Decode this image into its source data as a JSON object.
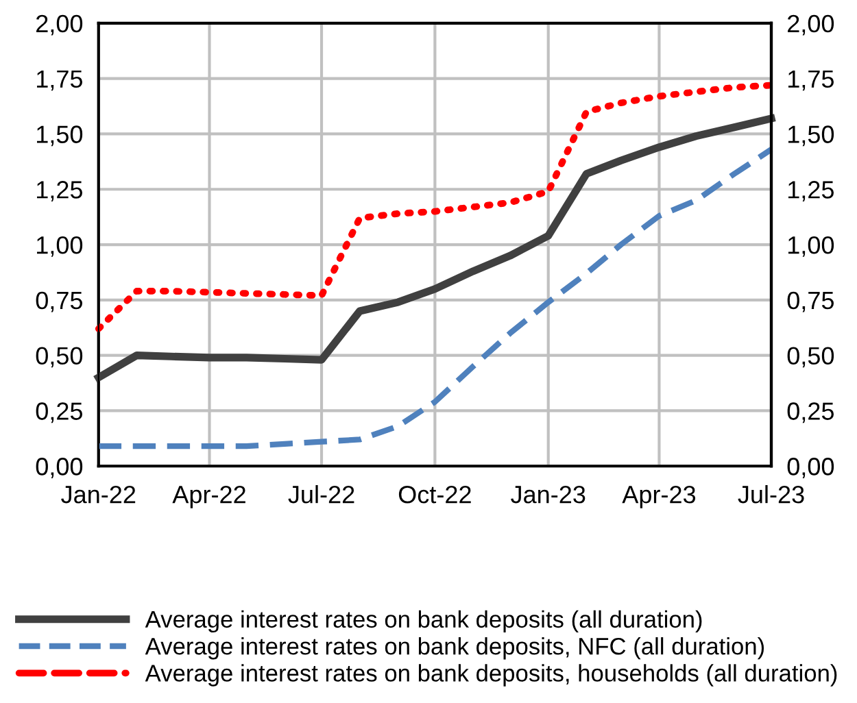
{
  "chart_data": {
    "type": "line",
    "x": [
      "2022-01",
      "2022-02",
      "2022-03",
      "2022-04",
      "2022-05",
      "2022-06",
      "2022-07",
      "2022-08",
      "2022-09",
      "2022-10",
      "2022-11",
      "2022-12",
      "2023-01",
      "2023-02",
      "2023-03",
      "2023-04",
      "2023-05",
      "2023-06",
      "2023-07"
    ],
    "series": [
      {
        "name": "Average interest rates on bank deposits (all duration)",
        "color": "#404040",
        "line_style": "solid",
        "values": [
          0.4,
          0.5,
          0.495,
          0.49,
          0.49,
          0.485,
          0.48,
          0.7,
          0.74,
          0.8,
          0.88,
          0.95,
          1.04,
          1.32,
          1.38,
          1.44,
          1.49,
          1.53,
          1.57
        ]
      },
      {
        "name": "Average interest rates on bank deposits, NFC (all duration)",
        "color": "#4f81bd",
        "line_style": "dashed",
        "values": [
          0.09,
          0.09,
          0.09,
          0.09,
          0.09,
          0.1,
          0.11,
          0.12,
          0.18,
          0.29,
          0.45,
          0.6,
          0.74,
          0.87,
          1.0,
          1.13,
          1.2,
          1.32,
          1.43
        ]
      },
      {
        "name": "Average interest rates on bank deposits, households (all duration)",
        "color": "#ff0000",
        "line_style": "dotted",
        "values": [
          0.62,
          0.79,
          0.79,
          0.785,
          0.78,
          0.775,
          0.77,
          1.12,
          1.14,
          1.15,
          1.17,
          1.19,
          1.24,
          1.6,
          1.64,
          1.67,
          1.69,
          1.71,
          1.72
        ]
      }
    ],
    "xlim": [
      "2022-01",
      "2023-07"
    ],
    "xticks": [
      {
        "value": "2022-01",
        "label": "Jan-22"
      },
      {
        "value": "2022-04",
        "label": "Apr-22"
      },
      {
        "value": "2022-07",
        "label": "Jul-22"
      },
      {
        "value": "2022-10",
        "label": "Oct-22"
      },
      {
        "value": "2023-01",
        "label": "Jan-23"
      },
      {
        "value": "2023-04",
        "label": "Apr-23"
      },
      {
        "value": "2023-07",
        "label": "Jul-23"
      }
    ],
    "ylim": [
      0,
      2
    ],
    "yticks": [
      {
        "value": 0,
        "label": "0,00"
      },
      {
        "value": 0.25,
        "label": "0,25"
      },
      {
        "value": 0.5,
        "label": "0,50"
      },
      {
        "value": 0.75,
        "label": "0,75"
      },
      {
        "value": 1,
        "label": "1,00"
      },
      {
        "value": 1.25,
        "label": "1,25"
      },
      {
        "value": 1.5,
        "label": "1,50"
      },
      {
        "value": 1.75,
        "label": "1,75"
      },
      {
        "value": 2,
        "label": "2,00"
      }
    ],
    "y2lim": [
      0,
      2
    ],
    "y2ticks": [
      {
        "value": 0,
        "label": "0,00"
      },
      {
        "value": 0.25,
        "label": "0,25"
      },
      {
        "value": 0.5,
        "label": "0,50"
      },
      {
        "value": 0.75,
        "label": "0,75"
      },
      {
        "value": 1,
        "label": "1,00"
      },
      {
        "value": 1.25,
        "label": "1,25"
      },
      {
        "value": 1.5,
        "label": "1,50"
      },
      {
        "value": 1.75,
        "label": "1,75"
      },
      {
        "value": 2,
        "label": "2,00"
      }
    ],
    "grid": true,
    "legend": "bottom",
    "marker": "none"
  }
}
